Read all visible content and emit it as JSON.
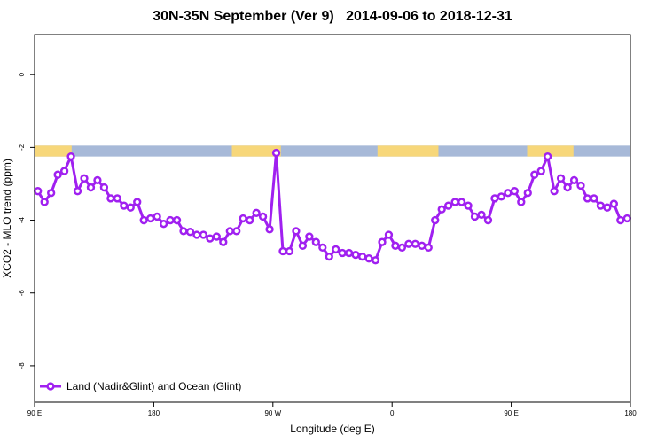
{
  "chart_data": {
    "type": "line",
    "title": "30N-35N September (Ver 9)   2014-09-06 to 2018-12-31",
    "xlabel": "Longitude (deg E)",
    "ylabel": "XCO2 - MLO trend (ppm)",
    "xlim": [
      90,
      540
    ],
    "ylim": [
      -9.0,
      1.1
    ],
    "x_ticks": [
      {
        "value": 90,
        "label": "90 E"
      },
      {
        "value": 180,
        "label": "180"
      },
      {
        "value": 270,
        "label": "90 W"
      },
      {
        "value": 360,
        "label": "0"
      },
      {
        "value": 450,
        "label": "90 E"
      },
      {
        "value": 540,
        "label": "180"
      }
    ],
    "y_ticks": [
      {
        "value": 0,
        "label": "0"
      },
      {
        "value": -2,
        "label": "-2"
      },
      {
        "value": -4,
        "label": "-4"
      },
      {
        "value": -6,
        "label": "-6"
      },
      {
        "value": -8,
        "label": "-8"
      }
    ],
    "grid": false,
    "legend_position": "bottom-left",
    "surface_band": {
      "y_range": [
        -2.25,
        -1.95
      ],
      "land_color": "#f7d77a",
      "ocean_color": "#a7b9d8",
      "land_segments": [
        [
          90,
          118
        ],
        [
          239,
          276
        ],
        [
          349,
          395
        ],
        [
          462,
          497
        ]
      ]
    },
    "series": [
      {
        "name": "Land (Nadir&Glint) and Ocean (Glint)",
        "color": "#a020f0",
        "x": [
          92.5,
          97.5,
          102.5,
          107.5,
          112.5,
          117.5,
          122.5,
          127.5,
          132.5,
          137.5,
          142.5,
          147.5,
          152.5,
          157.5,
          162.5,
          167.5,
          172.5,
          177.5,
          182.5,
          187.5,
          192.5,
          197.5,
          202.5,
          207.5,
          212.5,
          217.5,
          222.5,
          227.5,
          232.5,
          237.5,
          242.5,
          247.5,
          252.5,
          257.5,
          262.5,
          267.5,
          272.5,
          277.5,
          282.5,
          287.5,
          292.5,
          297.5,
          302.5,
          307.5,
          312.5,
          317.5,
          322.5,
          327.5,
          332.5,
          337.5,
          342.5,
          347.5,
          352.5,
          357.5,
          362.5,
          367.5,
          372.5,
          377.5,
          382.5,
          387.5,
          392.5,
          397.5,
          402.5,
          407.5,
          412.5,
          417.5,
          422.5,
          427.5,
          432.5,
          437.5,
          442.5,
          447.5,
          452.5,
          457.5,
          462.5,
          467.5,
          472.5,
          477.5,
          482.5,
          487.5,
          492.5,
          497.5,
          502.5,
          507.5,
          512.5,
          517.5,
          522.5,
          527.5,
          532.5,
          537.5
        ],
        "y": [
          -3.2,
          -3.5,
          -3.25,
          -2.75,
          -2.65,
          -2.25,
          -3.2,
          -2.85,
          -3.1,
          -2.9,
          -3.1,
          -3.4,
          -3.4,
          -3.6,
          -3.65,
          -3.5,
          -4.0,
          -3.95,
          -3.9,
          -4.1,
          -4.0,
          -4.0,
          -4.3,
          -4.32,
          -4.4,
          -4.4,
          -4.5,
          -4.45,
          -4.6,
          -4.3,
          -4.3,
          -3.95,
          -4.0,
          -3.8,
          -3.9,
          -4.25,
          -2.15,
          -4.85,
          -4.85,
          -4.3,
          -4.7,
          -4.45,
          -4.6,
          -4.75,
          -5.0,
          -4.8,
          -4.9,
          -4.9,
          -4.95,
          -5.0,
          -5.05,
          -5.1,
          -4.6,
          -4.4,
          -4.7,
          -4.75,
          -4.65,
          -4.65,
          -4.7,
          -4.75,
          -4.0,
          -3.7,
          -3.6,
          -3.5,
          -3.5,
          -3.6,
          -3.9,
          -3.85,
          -4.0,
          -3.4,
          -3.35,
          -3.25,
          -3.2,
          -3.5,
          -3.25,
          -2.75,
          -2.65,
          -2.25,
          -3.2,
          -2.85,
          -3.1,
          -2.9,
          -3.05,
          -3.4,
          -3.4,
          -3.6,
          -3.65,
          -3.55,
          -4.0,
          -3.95
        ]
      }
    ]
  }
}
